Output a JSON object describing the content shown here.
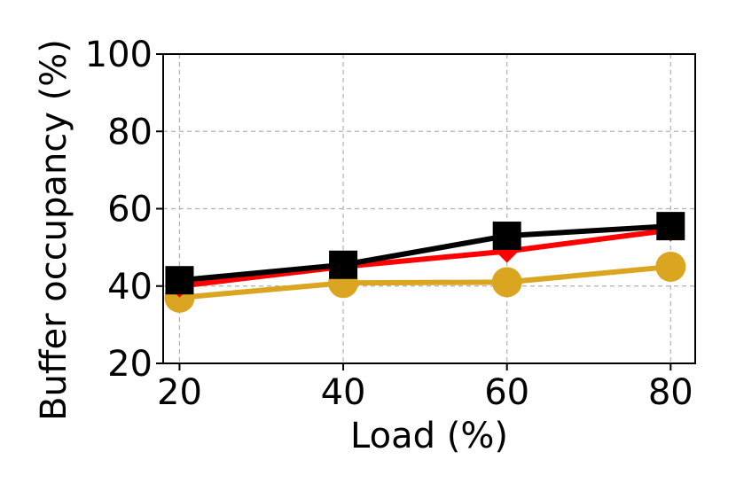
{
  "chart_data": {
    "type": "line",
    "title": "",
    "xlabel": "Load (%)",
    "ylabel": "Buffer occupancy (%)",
    "x": [
      20,
      40,
      60,
      80
    ],
    "xlim": [
      18,
      83
    ],
    "ylim": [
      20,
      100
    ],
    "xticks": [
      "20",
      "40",
      "60",
      "80"
    ],
    "yticks": [
      "20",
      "40",
      "60",
      "80",
      "100"
    ],
    "grid": true,
    "legend": "none",
    "series": [
      {
        "color": "#daa520",
        "marker": "circle",
        "values": [
          37,
          40.8,
          41,
          45
        ]
      },
      {
        "color": "#ff0000",
        "marker": "diamond",
        "values": [
          40,
          45,
          49,
          54.5
        ]
      },
      {
        "color": "#000000",
        "marker": "square",
        "values": [
          41.5,
          45.5,
          53,
          55.5
        ]
      }
    ]
  }
}
